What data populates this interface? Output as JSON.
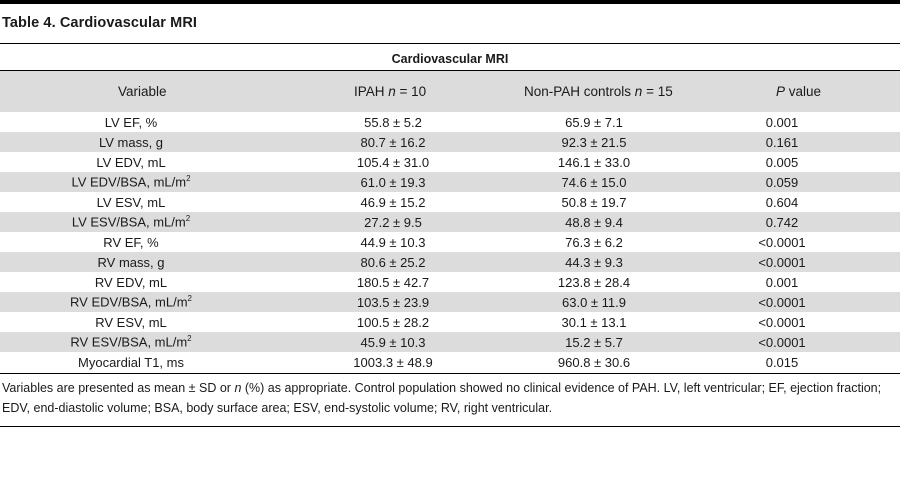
{
  "table": {
    "title": "Table 4. Cardiovascular MRI",
    "group_header": "Cardiovascular MRI",
    "columns": {
      "variable": "Variable",
      "ipah_prefix": "IPAH ",
      "ipah_n_symbol": "n",
      "ipah_n_value": " = 10",
      "controls_prefix": "Non-PAH controls ",
      "controls_n_symbol": "n",
      "controls_n_value": " = 15",
      "p_symbol": "P",
      "p_suffix": " value"
    },
    "rows": [
      {
        "variable": "LV EF, %",
        "sup": "",
        "ipah": "55.8 ± 5.2",
        "controls": "65.9 ± 7.1",
        "p": "0.001"
      },
      {
        "variable": "LV mass, g",
        "sup": "",
        "ipah": "80.7 ± 16.2",
        "controls": "92.3 ± 21.5",
        "p": "0.161"
      },
      {
        "variable": "LV EDV, mL",
        "sup": "",
        "ipah": "105.4 ± 31.0",
        "controls": "146.1 ± 33.0",
        "p": "0.005"
      },
      {
        "variable": "LV EDV/BSA, mL/m",
        "sup": "2",
        "ipah": "61.0 ± 19.3",
        "controls": "74.6 ± 15.0",
        "p": "0.059"
      },
      {
        "variable": "LV ESV, mL",
        "sup": "",
        "ipah": "46.9 ± 15.2",
        "controls": "50.8 ± 19.7",
        "p": "0.604"
      },
      {
        "variable": "LV ESV/BSA, mL/m",
        "sup": "2",
        "ipah": "27.2 ± 9.5",
        "controls": "48.8 ± 9.4",
        "p": "0.742"
      },
      {
        "variable": "RV EF, %",
        "sup": "",
        "ipah": "44.9 ± 10.3",
        "controls": "76.3 ± 6.2",
        "p": "<0.0001"
      },
      {
        "variable": "RV mass, g",
        "sup": "",
        "ipah": "80.6 ± 25.2",
        "controls": "44.3 ± 9.3",
        "p": "<0.0001"
      },
      {
        "variable": "RV EDV, mL",
        "sup": "",
        "ipah": "180.5 ± 42.7",
        "controls": "123.8 ± 28.4",
        "p": "0.001"
      },
      {
        "variable": "RV EDV/BSA, mL/m",
        "sup": "2",
        "ipah": "103.5 ± 23.9",
        "controls": "63.0 ± 11.9",
        "p": "<0.0001"
      },
      {
        "variable": "RV ESV, mL",
        "sup": "",
        "ipah": "100.5 ± 28.2",
        "controls": "30.1 ± 13.1",
        "p": "<0.0001"
      },
      {
        "variable": "RV ESV/BSA, mL/m",
        "sup": "2",
        "ipah": "45.9 ± 10.3",
        "controls": "15.2 ± 5.7",
        "p": "<0.0001"
      },
      {
        "variable": "Myocardial T1, ms",
        "sup": "",
        "ipah": "1003.3 ± 48.9",
        "controls": "960.8 ± 30.6",
        "p": "0.015"
      }
    ]
  },
  "footnote": {
    "part1": "Variables are presented as mean ± SD or ",
    "n_symbol": "n",
    "part2": " (%) as appropriate. Control population showed no clinical evidence of PAH. LV, left ventricular; EF, ejection fraction; EDV, end-diastolic volume; BSA, body surface area; ESV, end-systolic volume; RV, right ventricular."
  },
  "colors": {
    "shade": "#dcdcdc",
    "rule": "#000000",
    "text": "#1a1a1a"
  }
}
